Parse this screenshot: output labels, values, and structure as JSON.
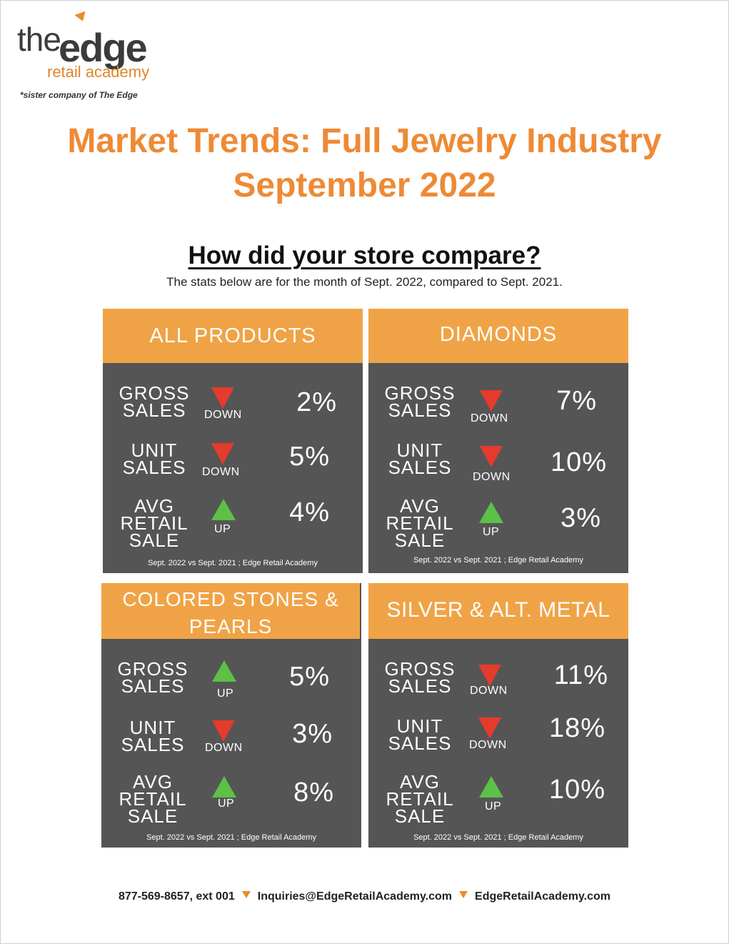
{
  "logo": {
    "the": "the",
    "edge": "edge",
    "retail_academy": "retail academy",
    "sister_note": "*sister company of The Edge"
  },
  "title": {
    "line1": "Market Trends: Full Jewelry Industry",
    "line2": "September 2022"
  },
  "compare": {
    "heading": "How did your store compare?",
    "subtext": "The stats below are for the month of Sept. 2022, compared to Sept. 2021."
  },
  "panels": [
    {
      "title": "ALL PRODUCTS",
      "rows": [
        {
          "label": "GROSS SALES",
          "direction": "DOWN",
          "value": "2%"
        },
        {
          "label": "UNIT SALES",
          "direction": "DOWN",
          "value": "5%"
        },
        {
          "label": "AVG RETAIL SALE",
          "direction": "UP",
          "value": "4%"
        }
      ],
      "source": "Sept. 2022 vs Sept. 2021 ; Edge Retail Academy"
    },
    {
      "title": "DIAMONDS",
      "rows": [
        {
          "label": "GROSS SALES",
          "direction": "DOWN",
          "value": "7%"
        },
        {
          "label": "UNIT SALES",
          "direction": "DOWN",
          "value": "10%"
        },
        {
          "label": "AVG RETAIL SALE",
          "direction": "UP",
          "value": "3%"
        }
      ],
      "source": "Sept. 2022 vs Sept. 2021 ; Edge Retail Academy"
    },
    {
      "title": "COLORED STONES & PEARLS",
      "rows": [
        {
          "label": "GROSS SALES",
          "direction": "UP",
          "value": "5%"
        },
        {
          "label": "UNIT SALES",
          "direction": "DOWN",
          "value": "3%"
        },
        {
          "label": "AVG RETAIL SALE",
          "direction": "UP",
          "value": "8%"
        }
      ],
      "source": "Sept. 2022 vs Sept. 2021 ; Edge Retail Academy"
    },
    {
      "title": "SILVER & ALT. METAL",
      "rows": [
        {
          "label": "GROSS SALES",
          "direction": "DOWN",
          "value": "11%"
        },
        {
          "label": "UNIT SALES",
          "direction": "DOWN",
          "value": "18%"
        },
        {
          "label": "AVG RETAIL SALE",
          "direction": "UP",
          "value": "10%"
        }
      ],
      "source": "Sept. 2022 vs Sept. 2021 ; Edge Retail Academy"
    }
  ],
  "footer": {
    "phone": "877-569-8657, ext 001",
    "email": "Inquiries@EdgeRetailAcademy.com",
    "website": "EdgeRetailAcademy.com"
  },
  "colors": {
    "accent_orange": "#ee8a35",
    "panel_header": "#f0a346",
    "panel_body": "#555555",
    "up_green": "#5dc047",
    "down_red": "#e53b2c"
  }
}
